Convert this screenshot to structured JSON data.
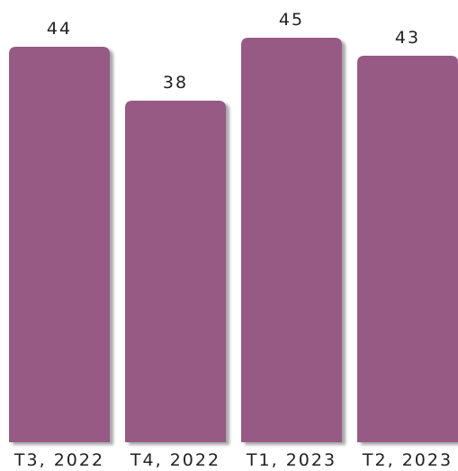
{
  "chart_data": {
    "type": "bar",
    "categories": [
      "T3, 2022",
      "T4, 2022",
      "T1, 2023",
      "T2, 2023"
    ],
    "values": [
      44,
      38,
      45,
      43
    ],
    "title": "",
    "xlabel": "",
    "ylabel": "",
    "ylim": [
      0,
      45
    ],
    "grid": false,
    "legend": "none",
    "colors": {
      "bar": "#965A84",
      "shadow": "#cfcfcf",
      "text": "#222222"
    }
  }
}
